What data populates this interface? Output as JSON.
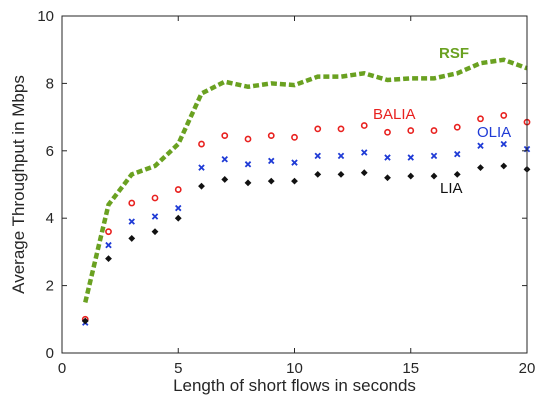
{
  "chart_data": {
    "type": "scatter",
    "xlabel": "Length of short flows in seconds",
    "ylabel": "Average Throughput in Mbps",
    "xlim": [
      0,
      20
    ],
    "ylim": [
      0,
      10
    ],
    "xticks": [
      "0",
      "5",
      "10",
      "15",
      "20"
    ],
    "yticks": [
      "0",
      "2",
      "4",
      "6",
      "8",
      "10"
    ],
    "grid": false,
    "x": [
      1,
      2,
      3,
      4,
      5,
      6,
      7,
      8,
      9,
      10,
      11,
      12,
      13,
      14,
      15,
      16,
      17,
      18,
      19,
      20
    ],
    "series": [
      {
        "name": "RSF",
        "style": "dashed-line",
        "color": "#6aa121",
        "values": [
          1.5,
          4.4,
          5.3,
          5.55,
          6.2,
          7.7,
          8.05,
          7.9,
          8.0,
          7.95,
          8.2,
          8.2,
          8.3,
          8.1,
          8.15,
          8.15,
          8.3,
          8.6,
          8.7,
          8.45
        ]
      },
      {
        "name": "BALIA",
        "style": "circle-marker",
        "color": "#e8211f",
        "values": [
          1.0,
          3.6,
          4.45,
          4.6,
          4.85,
          6.2,
          6.45,
          6.35,
          6.45,
          6.4,
          6.65,
          6.65,
          6.75,
          6.55,
          6.6,
          6.6,
          6.7,
          6.95,
          7.05,
          6.85
        ]
      },
      {
        "name": "OLIA",
        "style": "x-marker",
        "color": "#1f3bd6",
        "values": [
          0.9,
          3.2,
          3.9,
          4.05,
          4.3,
          5.5,
          5.75,
          5.6,
          5.7,
          5.65,
          5.85,
          5.85,
          5.95,
          5.8,
          5.8,
          5.85,
          5.9,
          6.15,
          6.2,
          6.05
        ]
      },
      {
        "name": "LIA",
        "style": "diamond-marker",
        "color": "#111111",
        "values": [
          0.95,
          2.8,
          3.4,
          3.6,
          4.0,
          4.95,
          5.15,
          5.05,
          5.1,
          5.1,
          5.3,
          5.3,
          5.35,
          5.2,
          5.25,
          5.25,
          5.3,
          5.5,
          5.55,
          5.45
        ]
      }
    ]
  }
}
